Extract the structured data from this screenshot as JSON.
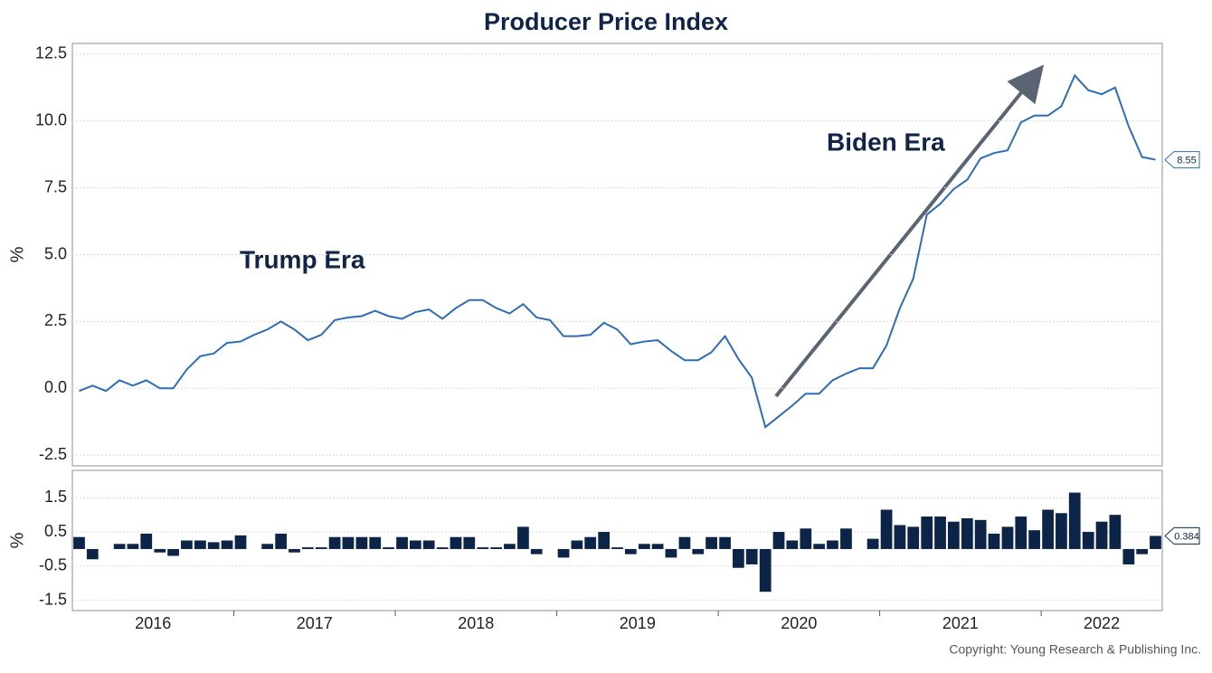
{
  "copyright": "Copyright: Young Research & Publishing Inc.",
  "chart_data": [
    {
      "type": "line",
      "title": "Producer Price Index",
      "ylabel": "%",
      "annotations": [
        "Trump Era",
        "Biden Era"
      ],
      "xlim": [
        2016,
        2022.75
      ],
      "x": [
        2016.042,
        2016.125,
        2016.208,
        2016.292,
        2016.375,
        2016.458,
        2016.542,
        2016.625,
        2016.708,
        2016.792,
        2016.875,
        2016.958,
        2017.042,
        2017.125,
        2017.208,
        2017.292,
        2017.375,
        2017.458,
        2017.542,
        2017.625,
        2017.708,
        2017.792,
        2017.875,
        2017.958,
        2018.042,
        2018.125,
        2018.208,
        2018.292,
        2018.375,
        2018.458,
        2018.542,
        2018.625,
        2018.708,
        2018.792,
        2018.875,
        2018.958,
        2019.042,
        2019.125,
        2019.208,
        2019.292,
        2019.375,
        2019.458,
        2019.542,
        2019.625,
        2019.708,
        2019.792,
        2019.875,
        2019.958,
        2020.042,
        2020.125,
        2020.208,
        2020.292,
        2020.375,
        2020.458,
        2020.542,
        2020.625,
        2020.708,
        2020.792,
        2020.875,
        2020.958,
        2021.042,
        2021.125,
        2021.208,
        2021.292,
        2021.375,
        2021.458,
        2021.542,
        2021.625,
        2021.708,
        2021.792,
        2021.875,
        2021.958,
        2022.042,
        2022.125,
        2022.208,
        2022.292,
        2022.375,
        2022.458,
        2022.542,
        2022.625,
        2022.708
      ],
      "ylim": [
        -2.9,
        12.9
      ],
      "yticks": [
        {
          "value": -2.5,
          "label": "-2.5"
        },
        {
          "value": 0,
          "label": "0.0"
        },
        2.5,
        {
          "value": 5,
          "label": "5.0"
        },
        7.5,
        {
          "value": 10,
          "label": "10.0"
        },
        12.5
      ],
      "grid": true,
      "series": [
        {
          "color": "#2e6db5",
          "values": [
            -0.1,
            0.1,
            -0.1,
            0.3,
            0.1,
            0.3,
            0.0,
            0.0,
            0.7,
            1.2,
            1.3,
            1.7,
            1.75,
            2.0,
            2.2,
            2.5,
            2.2,
            1.8,
            2.0,
            2.55,
            2.65,
            2.7,
            2.9,
            2.7,
            2.6,
            2.85,
            2.95,
            2.6,
            3.0,
            3.3,
            3.3,
            3.0,
            2.8,
            3.15,
            2.65,
            2.55,
            1.95,
            1.95,
            2.0,
            2.45,
            2.2,
            1.65,
            1.75,
            1.8,
            1.4,
            1.05,
            1.05,
            1.35,
            1.95,
            1.1,
            0.4,
            -1.45,
            -1.05,
            -0.65,
            -0.2,
            -0.2,
            0.3,
            0.55,
            0.75,
            0.75,
            1.6,
            3.0,
            4.1,
            6.5,
            6.9,
            7.45,
            7.8,
            8.6,
            8.8,
            8.9,
            9.95,
            10.2,
            10.2,
            10.55,
            11.7,
            11.15,
            11.0,
            11.25,
            9.8,
            8.65,
            8.55
          ]
        }
      ]
    },
    {
      "type": "bar",
      "ylabel": "%",
      "xlim": [
        2016,
        2022.75
      ],
      "x": [
        2016.042,
        2016.125,
        2016.208,
        2016.292,
        2016.375,
        2016.458,
        2016.542,
        2016.625,
        2016.708,
        2016.792,
        2016.875,
        2016.958,
        2017.042,
        2017.125,
        2017.208,
        2017.292,
        2017.375,
        2017.458,
        2017.542,
        2017.625,
        2017.708,
        2017.792,
        2017.875,
        2017.958,
        2018.042,
        2018.125,
        2018.208,
        2018.292,
        2018.375,
        2018.458,
        2018.542,
        2018.625,
        2018.708,
        2018.792,
        2018.875,
        2018.958,
        2019.042,
        2019.125,
        2019.208,
        2019.292,
        2019.375,
        2019.458,
        2019.542,
        2019.625,
        2019.708,
        2019.792,
        2019.875,
        2019.958,
        2020.042,
        2020.125,
        2020.208,
        2020.292,
        2020.375,
        2020.458,
        2020.542,
        2020.625,
        2020.708,
        2020.792,
        2020.875,
        2020.958,
        2021.042,
        2021.125,
        2021.208,
        2021.292,
        2021.375,
        2021.458,
        2021.542,
        2021.625,
        2021.708,
        2021.792,
        2021.875,
        2021.958,
        2022.042,
        2022.125,
        2022.208,
        2022.292,
        2022.375,
        2022.458,
        2022.542,
        2022.625,
        2022.708
      ],
      "xticks": [
        {
          "value": 2016.5,
          "label": "2016"
        },
        {
          "value": 2017.5,
          "label": "2017"
        },
        {
          "value": 2018.5,
          "label": "2018"
        },
        {
          "value": 2019.5,
          "label": "2019"
        },
        {
          "value": 2020.5,
          "label": "2020"
        },
        {
          "value": 2021.5,
          "label": "2021"
        },
        {
          "value": 2022.375,
          "label": "2022"
        }
      ],
      "ylim": [
        -1.8,
        2.3
      ],
      "yticks": [
        1.5,
        0.5,
        -0.5,
        -1.5
      ],
      "grid": true,
      "series": [
        {
          "color": "#0c2448",
          "values": [
            0.35,
            -0.3,
            0,
            0.15,
            0.15,
            0.45,
            -0.1,
            -0.2,
            0.25,
            0.25,
            0.2,
            0.25,
            0.4,
            0,
            0.15,
            0.45,
            -0.1,
            0.05,
            0.05,
            0.35,
            0.35,
            0.35,
            0.35,
            0.05,
            0.35,
            0.25,
            0.25,
            0.05,
            0.35,
            0.35,
            0.05,
            0.05,
            0.15,
            0.65,
            -0.15,
            0,
            -0.25,
            0.25,
            0.35,
            0.5,
            0.05,
            -0.15,
            0.15,
            0.15,
            -0.25,
            0.35,
            -0.15,
            0.35,
            0.35,
            -0.55,
            -0.45,
            -1.25,
            0.5,
            0.25,
            0.6,
            0.15,
            0.25,
            0.6,
            0,
            0.3,
            1.15,
            0.7,
            0.65,
            0.95,
            0.95,
            0.8,
            0.9,
            0.85,
            0.45,
            0.65,
            0.95,
            0.55,
            1.15,
            1.05,
            1.65,
            0.5,
            0.8,
            1.0,
            -0.45,
            -0.15,
            0.384
          ]
        }
      ]
    }
  ]
}
